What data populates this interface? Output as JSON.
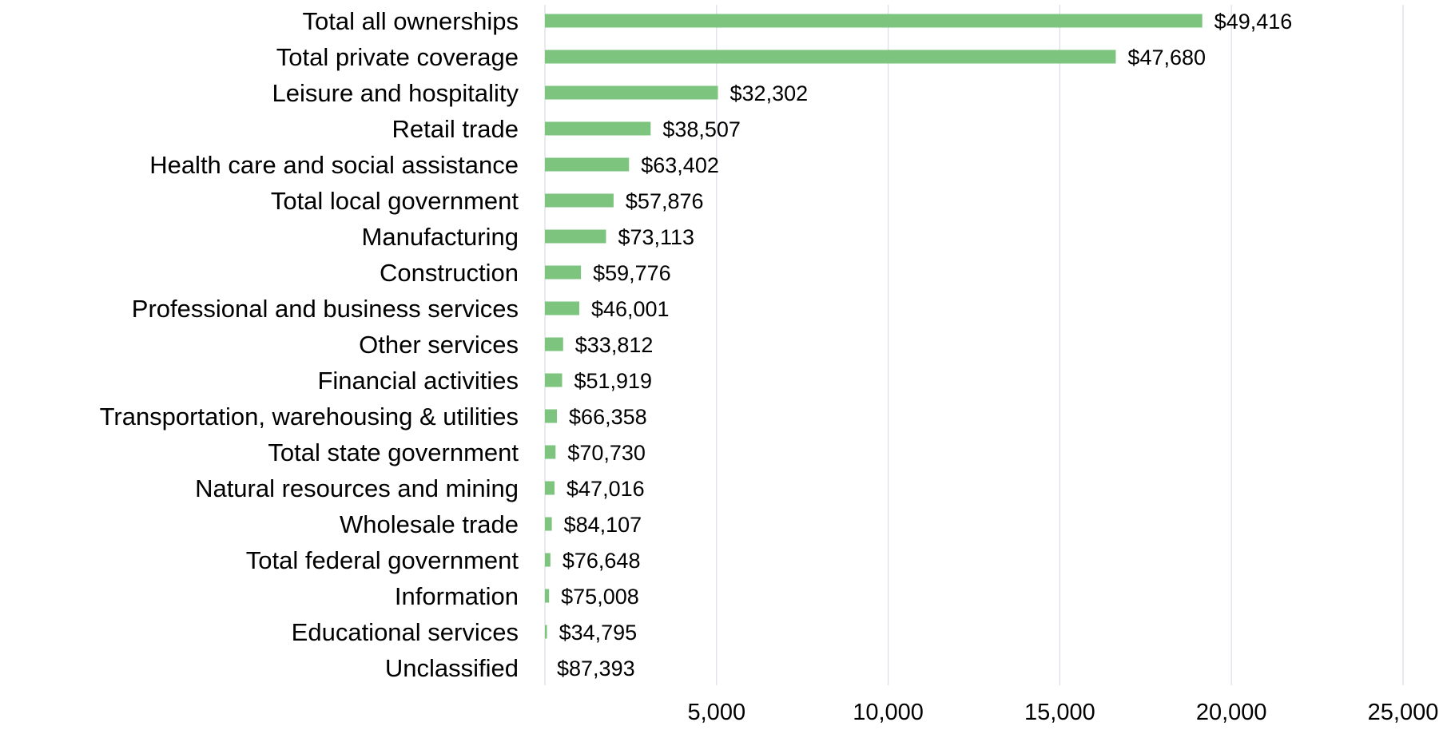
{
  "chart_data": {
    "type": "bar",
    "orientation": "horizontal",
    "categories": [
      "Total all ownerships",
      "Total private coverage",
      "Leisure and hospitality",
      "Retail trade",
      "Health care and social assistance",
      "Total local government",
      "Manufacturing",
      "Construction",
      "Professional and business services",
      "Other services",
      "Financial activities",
      "Transportation, warehousing & utilities",
      "Total state government",
      "Natural resources and mining",
      "Wholesale trade",
      "Total federal government",
      "Information",
      "Educational services",
      "Unclassified"
    ],
    "values": [
      19150,
      16630,
      5040,
      3080,
      2450,
      2000,
      1780,
      1050,
      1000,
      530,
      500,
      350,
      310,
      280,
      200,
      160,
      120,
      60,
      0
    ],
    "data_labels": [
      "$49,416",
      "$47,680",
      "$32,302",
      "$38,507",
      "$63,402",
      "$57,876",
      "$73,113",
      "$59,776",
      "$46,001",
      "$33,812",
      "$51,919",
      "$66,358",
      "$70,730",
      "$47,016",
      "$84,107",
      "$76,648",
      "$75,008",
      "$34,795",
      "$87,393"
    ],
    "x_ticks": [
      5000,
      10000,
      15000,
      20000,
      25000
    ],
    "x_tick_labels": [
      "5,000",
      "10,000",
      "15,000",
      "20,000",
      "25,000"
    ],
    "xlim": [
      0,
      25000
    ],
    "grid": "vertical",
    "legend": "none",
    "title": "",
    "xlabel": "",
    "ylabel": ""
  },
  "colors": {
    "bar": "#7dc47f",
    "grid": "#d9dde6",
    "text": "#000000"
  }
}
